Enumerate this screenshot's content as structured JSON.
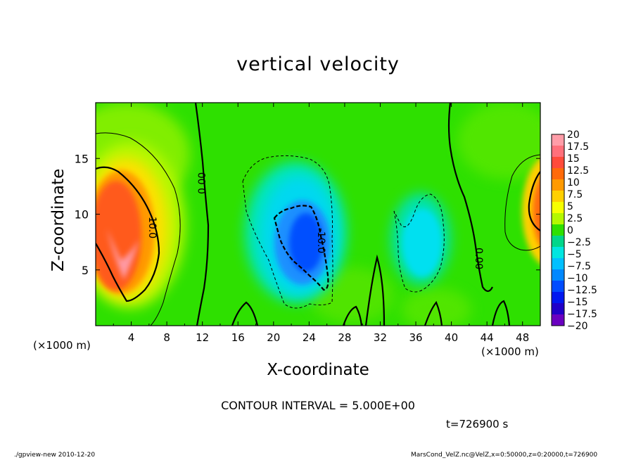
{
  "chart_data": {
    "type": "heatmap",
    "title": "vertical velocity",
    "xlabel": "X-coordinate",
    "ylabel": "Z-coordinate",
    "x_unit": "(×1000 m)",
    "z_unit": "(×1000 m)",
    "xlim": [
      0,
      50
    ],
    "ylim": [
      0,
      20
    ],
    "x_ticks": [
      4,
      8,
      12,
      16,
      20,
      24,
      28,
      32,
      36,
      40,
      44,
      48
    ],
    "y_ticks": [
      5,
      10,
      15
    ],
    "colorbar": {
      "labels": [
        "20",
        "17.5",
        "15",
        "12.5",
        "10",
        "7.5",
        "5",
        "2.5",
        "0",
        "−2.5",
        "−5",
        "−7.5",
        "−10",
        "−12.5",
        "−15",
        "−17.5",
        "−20"
      ],
      "range": [
        -20,
        20
      ],
      "colors": [
        "#ff9da8",
        "#ff707b",
        "#ff4b3b",
        "#ff6a0a",
        "#ff9a00",
        "#ffd000",
        "#f6ff00",
        "#b4f800",
        "#2ee000",
        "#00d68a",
        "#00e6e0",
        "#00c0ff",
        "#0088ff",
        "#004cff",
        "#0018f0",
        "#2000c8",
        "#6a00c0"
      ]
    },
    "contour_interval_text": "CONTOUR INTERVAL = 5.000E+00",
    "contour_labels": [
      "0.00",
      "10.0",
      "-10.0",
      "0.00"
    ],
    "features": [
      {
        "sign": "up",
        "x": 3,
        "z": 8,
        "peak": 15
      },
      {
        "sign": "up",
        "x": 50,
        "z": 10,
        "peak": 12
      },
      {
        "sign": "down",
        "x": 23.5,
        "z": 8.5,
        "peak": -12
      },
      {
        "sign": "down",
        "x": 36.5,
        "z": 7.5,
        "peak": -6
      }
    ]
  },
  "time_text": "t=726900 s",
  "footer_left": "./gpview-new  2010-12-20",
  "footer_right": "MarsCond_VelZ.nc@VelZ,x=0:50000,z=0:20000,t=726900"
}
